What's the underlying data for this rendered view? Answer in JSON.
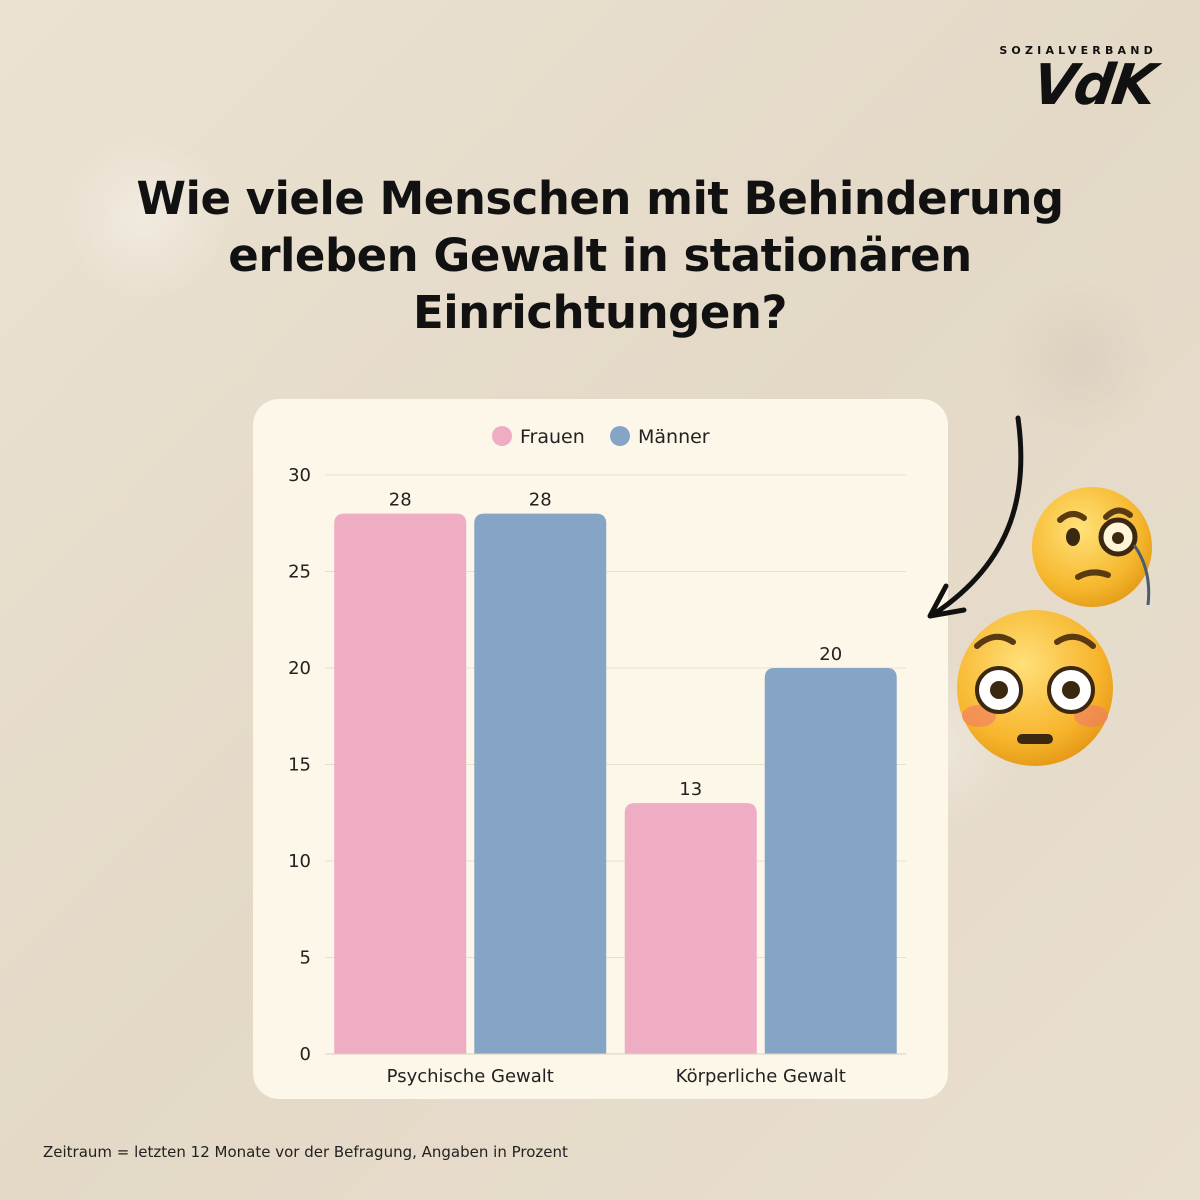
{
  "logo": {
    "top": "SOZIALVERBAND",
    "main": "VdK"
  },
  "title": "Wie viele Menschen mit Behinderung erleben Gewalt in stationären Einrichtungen?",
  "footnote": "Zeitraum = letzten 12 Monate vor der Befragung, Angaben in Prozent",
  "chart_data": {
    "type": "bar",
    "title": "",
    "xlabel": "",
    "ylabel": "",
    "categories": [
      "Psychische Gewalt",
      "Körperliche Gewalt"
    ],
    "series": [
      {
        "name": "Frauen",
        "values": [
          28,
          13
        ],
        "color": "#eeadc2"
      },
      {
        "name": "Männer",
        "values": [
          28,
          20
        ],
        "color": "#86a5c6"
      }
    ],
    "ylim": [
      0,
      30
    ],
    "yticks": [
      0,
      5,
      10,
      15,
      20,
      25,
      30
    ],
    "grid": true,
    "legend": "top-center",
    "data_labels": true
  },
  "decor": {
    "emojis": [
      "face-with-monocle-icon",
      "flushed-face-icon"
    ],
    "arrow": "curved-arrow-icon"
  }
}
